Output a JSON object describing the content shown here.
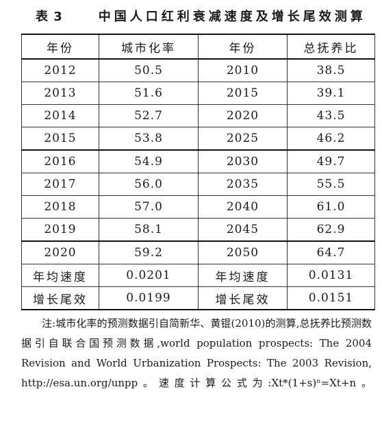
{
  "caption": {
    "number": "表 3",
    "title": "中国人口红利衰减速度及增长尾效测算"
  },
  "table": {
    "headers": [
      "年份",
      "城市化率",
      "年份",
      "总抚养比"
    ],
    "rows": [
      [
        "2012",
        "50.5",
        "2010",
        "38.5"
      ],
      [
        "2013",
        "51.6",
        "2015",
        "39.1"
      ],
      [
        "2014",
        "52.7",
        "2020",
        "43.5"
      ],
      [
        "2015",
        "53.8",
        "2025",
        "46.2"
      ],
      [
        "2016",
        "54.9",
        "2030",
        "49.7"
      ],
      [
        "2017",
        "56.0",
        "2035",
        "55.5"
      ],
      [
        "2018",
        "57.0",
        "2040",
        "61.0"
      ],
      [
        "2019",
        "58.1",
        "2045",
        "62.9"
      ],
      [
        "2020",
        "59.2",
        "2050",
        "64.7"
      ]
    ],
    "summary": [
      [
        "年均速度",
        "0.0201",
        "年均速度",
        "0.0131"
      ],
      [
        "增长尾效",
        "0.0199",
        "增长尾效",
        "0.0151"
      ]
    ]
  },
  "note": {
    "text": "注:城市化率的预测数据引自简新华、黄锟(2010)的测算,总抚养比预测数据引自联合国预测数据,world population prospects: The 2004 Revision and World Urbanization Prospects: The 2003 Revision, http://esa.un.org/unpp。速度计算公式为:Xt*(1+s)ⁿ=Xt+n。"
  }
}
